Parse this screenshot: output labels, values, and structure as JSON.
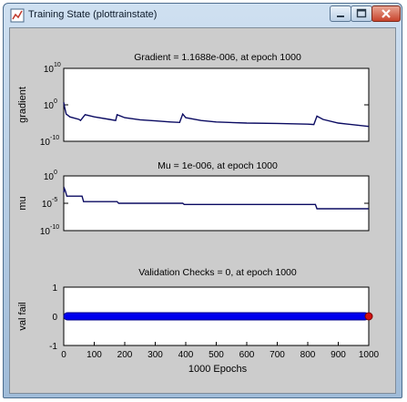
{
  "window": {
    "title": "Training State (plottrainstate)",
    "app_icon": "matlab-figure-icon",
    "controls": [
      "minimize-icon",
      "maximize-icon",
      "close-icon"
    ]
  },
  "chart_data": [
    {
      "type": "line",
      "title": "Gradient = 1.1688e-006, at epoch 1000",
      "ylabel": "gradient",
      "yscale": "log",
      "ylim": [
        1e-10,
        10000000000.0
      ],
      "xlim": [
        0,
        1000
      ],
      "y_tick_labels": [
        {
          "base": "10",
          "exp": "10"
        },
        {
          "base": "10",
          "exp": "0"
        },
        {
          "base": "10",
          "exp": "-10"
        }
      ],
      "line_color": "#0b0b62",
      "x": [
        0,
        3,
        8,
        20,
        50,
        55,
        70,
        100,
        150,
        170,
        175,
        200,
        250,
        300,
        350,
        380,
        390,
        400,
        450,
        500,
        600,
        700,
        800,
        820,
        830,
        850,
        900,
        1000
      ],
      "y": [
        5,
        0.2,
        0.003,
        0.0005,
        0.0001,
        5e-05,
        0.002,
        0.0005,
        0.0001,
        5e-05,
        0.002,
        0.0003,
        8e-05,
        4e-05,
        2e-05,
        1.5e-05,
        0.003,
        0.0003,
        5e-05,
        2e-05,
        1e-05,
        8e-06,
        5e-06,
        4e-06,
        0.0008,
        0.0001,
        1e-05,
        1.1688e-06
      ]
    },
    {
      "type": "line",
      "title": "Mu = 1e-006, at epoch 1000",
      "ylabel": "mu",
      "yscale": "log",
      "ylim": [
        1e-10,
        1
      ],
      "xlim": [
        0,
        1000
      ],
      "y_tick_labels": [
        {
          "base": "10",
          "exp": "0"
        },
        {
          "base": "10",
          "exp": "-5"
        },
        {
          "base": "10",
          "exp": "-10"
        }
      ],
      "line_color": "#0b0b62",
      "x": [
        0,
        2,
        5,
        10,
        60,
        65,
        175,
        180,
        390,
        395,
        825,
        830,
        1000
      ],
      "y": [
        0.001,
        0.005,
        0.002,
        0.0002,
        0.0002,
        2e-05,
        2e-05,
        1e-05,
        1e-05,
        6e-06,
        6e-06,
        1e-06,
        1e-06
      ]
    },
    {
      "type": "scatter",
      "title": "Validation Checks = 0, at epoch 1000",
      "xlabel": "1000 Epochs",
      "ylabel": "val fail",
      "ylim": [
        -1,
        1
      ],
      "xlim": [
        0,
        1000
      ],
      "y_ticks": [
        -1,
        0,
        1
      ],
      "x_ticks": [
        0,
        100,
        200,
        300,
        400,
        500,
        600,
        700,
        800,
        900,
        1000
      ],
      "marker_color": "#0000ee",
      "last_marker_color": "#d21010",
      "x_start": 0,
      "x_end": 1000,
      "value": 0
    }
  ]
}
